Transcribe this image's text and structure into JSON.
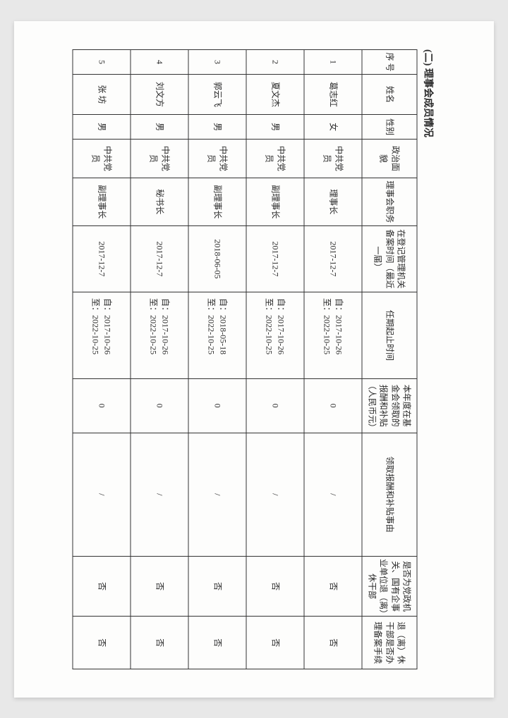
{
  "section_title": "(二) 理事会成员情况",
  "headers": {
    "seq": "序 号",
    "name": "姓名",
    "sex": "性别",
    "political": "政治面貌",
    "position": "理事会职务",
    "reg_time": "在登记管理机关备案时间（最近一届）",
    "term": "任期起止时间",
    "salary": "本年度在基金会领取的报酬和补贴（人民币元）",
    "reason": "领取报酬和补贴事由",
    "is_gov": "是否为党政机关、国有企事业单位退（离）休干部",
    "retired_proc": "退（离）休干部是否办理备案手续"
  },
  "rows": [
    {
      "seq": "1",
      "name": "葛志红",
      "sex": "女",
      "political": "中共党员",
      "position": "理事长",
      "reg_time": "2017-12-7",
      "term_from": "自：2017-10-26",
      "term_to": "至：2022-10-25",
      "salary": "0",
      "reason": "/",
      "is_gov": "否",
      "retired_proc": "否"
    },
    {
      "seq": "2",
      "name": "夏文杰",
      "sex": "男",
      "political": "中共党员",
      "position": "副理事长",
      "reg_time": "2017-12-7",
      "term_from": "自：2017-10-26",
      "term_to": "至：2022-10-25",
      "salary": "0",
      "reason": "/",
      "is_gov": "否",
      "retired_proc": "否"
    },
    {
      "seq": "3",
      "name": "郭云飞",
      "sex": "男",
      "political": "中共党员",
      "position": "副理事长",
      "reg_time": "2018-06-05",
      "term_from": "自：2018-05-18",
      "term_to": "至：2022-10-25",
      "salary": "0",
      "reason": "/",
      "is_gov": "否",
      "retired_proc": "否"
    },
    {
      "seq": "4",
      "name": "刘文方",
      "sex": "男",
      "political": "中共党员",
      "position": "秘书长",
      "reg_time": "2017-12-7",
      "term_from": "自：2017-10-26",
      "term_to": "至：2022-10-25",
      "salary": "0",
      "reason": "/",
      "is_gov": "否",
      "retired_proc": "否"
    },
    {
      "seq": "5",
      "name": "张  坊",
      "sex": "男",
      "political": "中共党员",
      "position": "副理事长",
      "reg_time": "2017-12-7",
      "term_from": "自：2017-10-26",
      "term_to": "至：2022-10-25",
      "salary": "0",
      "reason": "/",
      "is_gov": "否",
      "retired_proc": "否"
    }
  ]
}
